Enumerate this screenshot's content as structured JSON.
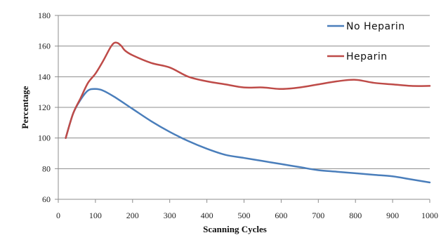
{
  "chart_data": {
    "type": "line",
    "title": "",
    "xlabel": "Scanning Cycles",
    "ylabel": "Percentage",
    "xlim": [
      0,
      1000
    ],
    "ylim": [
      60,
      180
    ],
    "x_ticks": [
      0,
      100,
      200,
      300,
      400,
      500,
      600,
      700,
      800,
      900,
      1000
    ],
    "y_ticks": [
      60,
      80,
      100,
      120,
      140,
      160,
      180
    ],
    "grid": "horizontal",
    "legend_position": "top-right",
    "series": [
      {
        "name": "No Heparin",
        "color": "#4a7ebb",
        "x": [
          20,
          40,
          60,
          80,
          100,
          120,
          150,
          200,
          250,
          300,
          350,
          400,
          450,
          500,
          550,
          600,
          650,
          700,
          750,
          800,
          850,
          900,
          950,
          1000
        ],
        "y": [
          100,
          116,
          125,
          131,
          132,
          131,
          127,
          119,
          111,
          104,
          98,
          93,
          89,
          87,
          85,
          83,
          81,
          79,
          78,
          77,
          76,
          75,
          73,
          71
        ]
      },
      {
        "name": "Heparin",
        "color": "#be4b48",
        "x": [
          20,
          40,
          60,
          80,
          100,
          120,
          140,
          150,
          160,
          170,
          180,
          200,
          250,
          300,
          350,
          400,
          450,
          500,
          550,
          600,
          650,
          700,
          750,
          800,
          850,
          900,
          950,
          1000
        ],
        "y": [
          100,
          116,
          126,
          136,
          142,
          150,
          159,
          162,
          162,
          160,
          157,
          154,
          149,
          146,
          140,
          137,
          135,
          133,
          133,
          132,
          133,
          135,
          137,
          138,
          136,
          135,
          134,
          134
        ]
      }
    ]
  }
}
